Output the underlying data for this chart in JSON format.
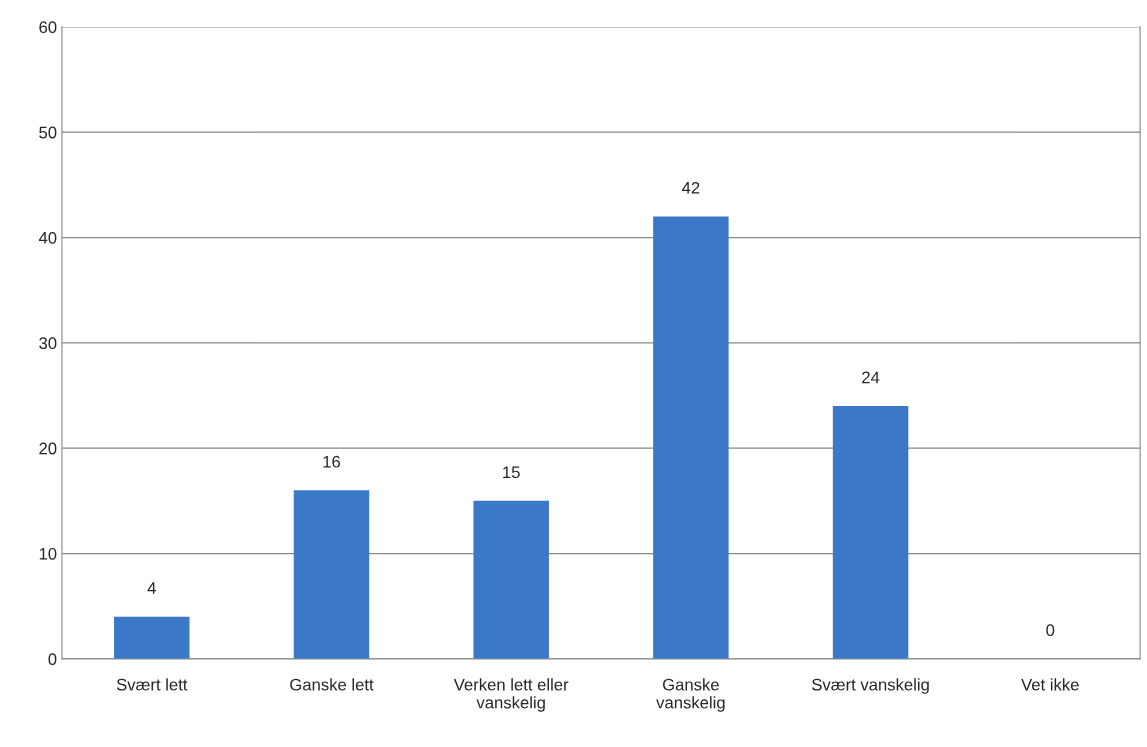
{
  "chart_data": {
    "type": "bar",
    "categories": [
      "Svært lett",
      "Ganske lett",
      "Verken lett eller\nvanskelig",
      "Ganske\nvanskelig",
      "Svært vanskelig",
      "Vet ikke"
    ],
    "values": [
      4,
      16,
      15,
      42,
      24,
      0
    ],
    "color": "#3b78c8",
    "ylim": [
      0,
      60
    ],
    "yticks": [
      0,
      10,
      20,
      30,
      40,
      50,
      60
    ],
    "grid": "y",
    "data_labels": true
  }
}
